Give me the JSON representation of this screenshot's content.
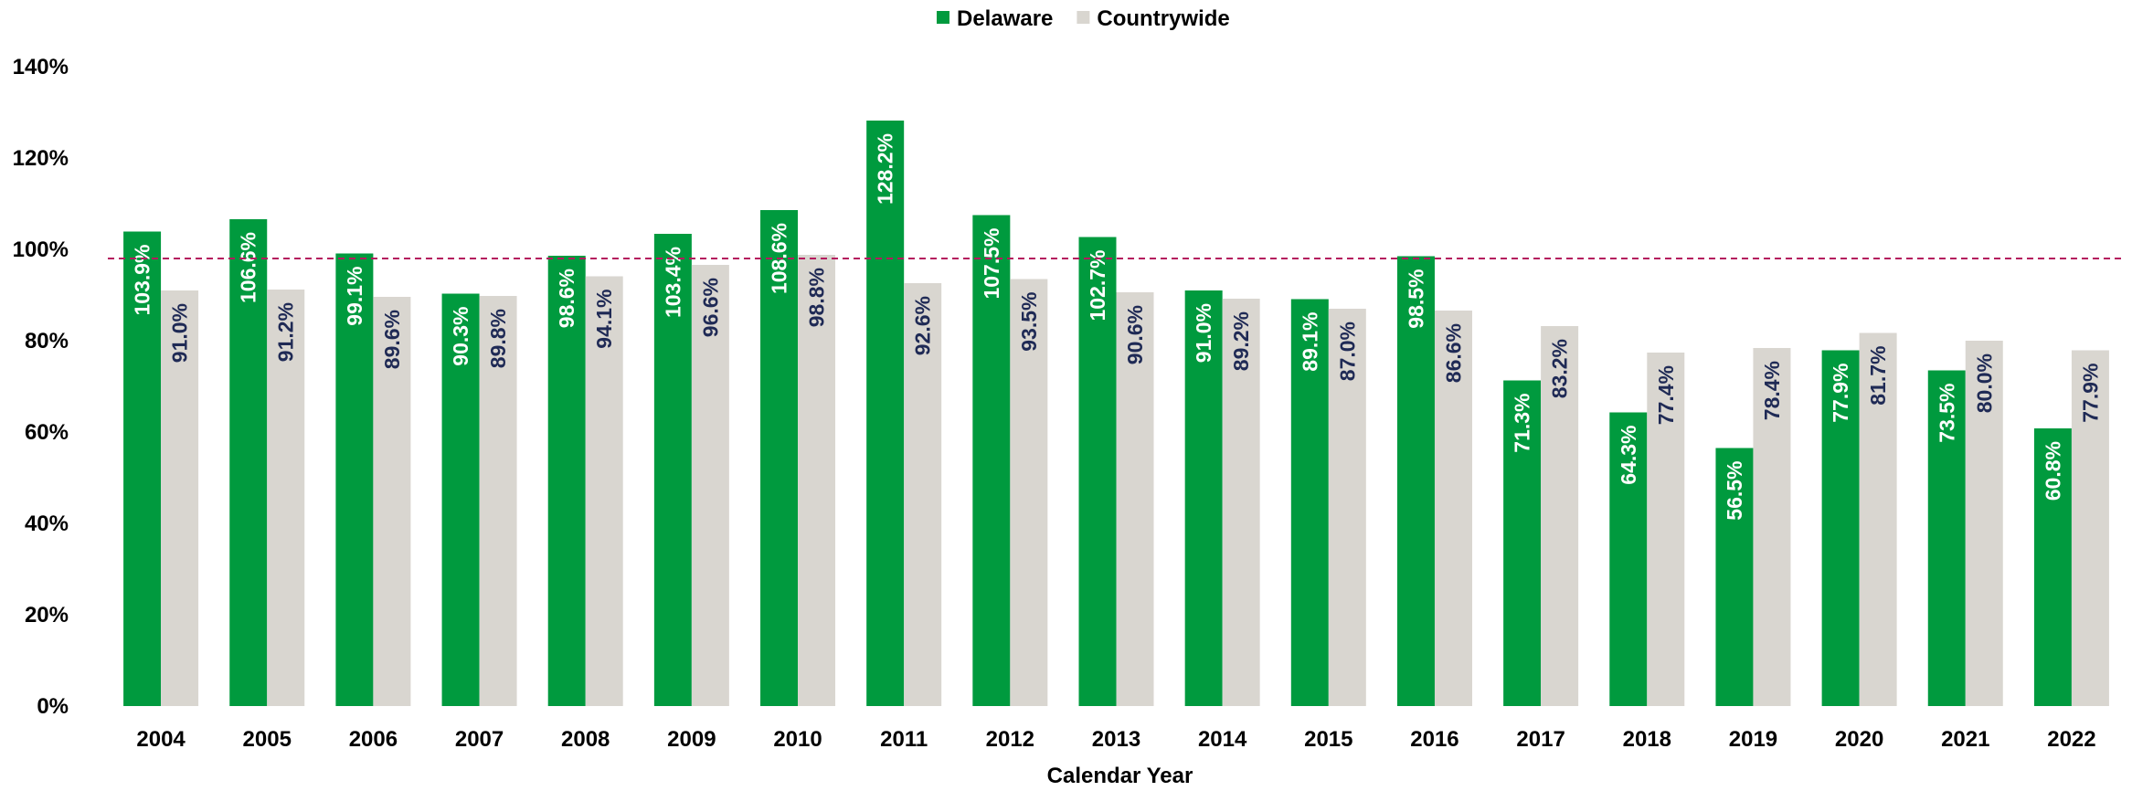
{
  "chart_data": {
    "type": "bar",
    "title": "",
    "xlabel": "Calendar Year",
    "ylabel": "",
    "ylim": [
      0,
      140
    ],
    "yticks": [
      0,
      20,
      40,
      60,
      80,
      100,
      120,
      140
    ],
    "ytick_labels": [
      "0%",
      "20%",
      "40%",
      "60%",
      "80%",
      "100%",
      "120%",
      "140%"
    ],
    "reference_line": {
      "value": 98,
      "style": "dashed",
      "color": "#b5195e"
    },
    "legend_position": "top-center",
    "grid": false,
    "categories": [
      "2004",
      "2005",
      "2006",
      "2007",
      "2008",
      "2009",
      "2010",
      "2011",
      "2012",
      "2013",
      "2014",
      "2015",
      "2016",
      "2017",
      "2018",
      "2019",
      "2020",
      "2021",
      "2022"
    ],
    "series": [
      {
        "name": "Delaware",
        "color": "#009a3e",
        "label_color": "#ffffff",
        "values": [
          103.9,
          106.6,
          99.1,
          90.3,
          98.6,
          103.4,
          108.6,
          128.2,
          107.5,
          102.7,
          91.0,
          89.1,
          98.5,
          71.3,
          64.3,
          56.5,
          77.9,
          73.5,
          60.8
        ],
        "labels": [
          "103.9%",
          "106.6%",
          "99.1%",
          "90.3%",
          "98.6%",
          "103.4%",
          "108.6%",
          "128.2%",
          "107.5%",
          "102.7%",
          "91.0%",
          "89.1%",
          "98.5%",
          "71.3%",
          "64.3%",
          "56.5%",
          "77.9%",
          "73.5%",
          "60.8%"
        ]
      },
      {
        "name": "Countrywide",
        "color": "#d9d6d0",
        "label_color": "#1f2a55",
        "values": [
          91.0,
          91.2,
          89.6,
          89.8,
          94.1,
          96.6,
          98.8,
          92.6,
          93.5,
          90.6,
          89.2,
          87.0,
          86.6,
          83.2,
          77.4,
          78.4,
          81.7,
          80.0,
          77.9
        ],
        "labels": [
          "91.0%",
          "91.2%",
          "89.6%",
          "89.8%",
          "94.1%",
          "96.6%",
          "98.8%",
          "92.6%",
          "93.5%",
          "90.6%",
          "89.2%",
          "87.0%",
          "86.6%",
          "83.2%",
          "77.4%",
          "78.4%",
          "81.7%",
          "80.0%",
          "77.9%"
        ]
      }
    ]
  }
}
